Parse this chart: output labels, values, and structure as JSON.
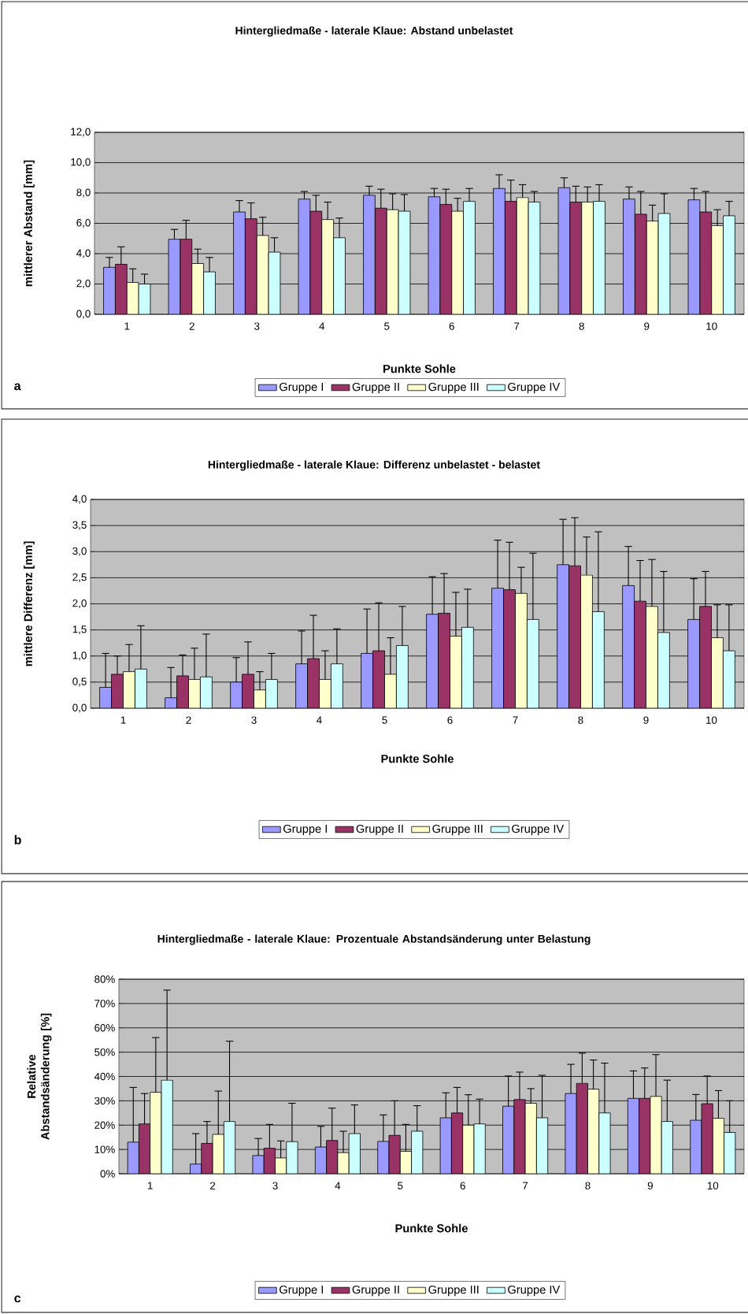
{
  "chart_data": [
    {
      "type": "bar",
      "title": "Hintergliedmaße - laterale Klaue: Abstand unbelastet",
      "xlabel": "Punkte Sohle",
      "ylabel": "mittlerer Abstand [mm]",
      "categories": [
        "1",
        "2",
        "3",
        "4",
        "5",
        "6",
        "7",
        "8",
        "9",
        "10"
      ],
      "series": [
        {
          "name": "Gruppe I",
          "color": "#9999ff",
          "values": [
            3.1,
            4.95,
            6.75,
            7.6,
            7.85,
            7.75,
            8.3,
            8.35,
            7.6,
            7.55
          ],
          "errors": [
            [
              3.1,
              3.75
            ],
            [
              4.95,
              5.6
            ],
            [
              6.75,
              7.5
            ],
            [
              7.6,
              8.1
            ],
            [
              7.85,
              8.45
            ],
            [
              7.75,
              8.3
            ],
            [
              8.3,
              9.2
            ],
            [
              8.35,
              9.0
            ],
            [
              7.6,
              8.4
            ],
            [
              7.55,
              8.3
            ]
          ]
        },
        {
          "name": "Gruppe II",
          "color": "#993366",
          "values": [
            3.3,
            4.95,
            6.3,
            6.8,
            7.0,
            7.25,
            7.45,
            7.4,
            6.6,
            6.75
          ],
          "errors": [
            [
              3.3,
              4.45
            ],
            [
              4.95,
              6.2
            ],
            [
              6.3,
              7.35
            ],
            [
              6.8,
              7.85
            ],
            [
              7.0,
              8.25
            ],
            [
              7.25,
              8.25
            ],
            [
              7.45,
              8.85
            ],
            [
              7.4,
              8.45
            ],
            [
              6.6,
              8.1
            ],
            [
              6.75,
              8.1
            ]
          ]
        },
        {
          "name": "Gruppe III",
          "color": "#ffffcc",
          "values": [
            2.1,
            3.35,
            5.2,
            6.25,
            6.9,
            6.8,
            7.7,
            7.4,
            6.15,
            5.85
          ],
          "errors": [
            [
              2.1,
              3.0
            ],
            [
              3.35,
              4.3
            ],
            [
              5.2,
              6.4
            ],
            [
              6.25,
              7.4
            ],
            [
              6.9,
              7.95
            ],
            [
              6.8,
              7.65
            ],
            [
              7.7,
              8.55
            ],
            [
              7.4,
              8.4
            ],
            [
              6.15,
              7.2
            ],
            [
              5.85,
              6.9
            ]
          ]
        },
        {
          "name": "Gruppe IV",
          "color": "#ccffff",
          "values": [
            2.0,
            2.8,
            4.1,
            5.05,
            6.8,
            7.45,
            7.4,
            7.45,
            6.65,
            6.5
          ],
          "errors": [
            [
              2.0,
              2.65
            ],
            [
              2.8,
              3.75
            ],
            [
              4.1,
              5.05
            ],
            [
              5.05,
              6.35
            ],
            [
              6.8,
              7.9
            ],
            [
              7.45,
              8.3
            ],
            [
              7.4,
              8.1
            ],
            [
              7.45,
              8.55
            ],
            [
              6.65,
              7.95
            ],
            [
              6.5,
              7.45
            ]
          ]
        }
      ],
      "ylim": [
        0,
        12
      ],
      "yticks": [
        {
          "value": 0,
          "label": "0,0"
        },
        {
          "value": 2,
          "label": "2,0"
        },
        {
          "value": 4,
          "label": "4,0"
        },
        {
          "value": 6,
          "label": "6,0"
        },
        {
          "value": 8,
          "label": "8,0"
        },
        {
          "value": 10,
          "label": "10,0"
        },
        {
          "value": 12,
          "label": "12,0"
        }
      ],
      "grid": "y",
      "legend": "bottom",
      "annotations": [
        "a"
      ]
    },
    {
      "type": "bar",
      "title": "Hintergliedmaße - laterale Klaue: Differenz unbelastet - belastet",
      "xlabel": "Punkte Sohle",
      "ylabel": "mittlere Differenz [mm]",
      "categories": [
        "1",
        "2",
        "3",
        "4",
        "5",
        "6",
        "7",
        "8",
        "9",
        "10"
      ],
      "series": [
        {
          "name": "Gruppe I",
          "color": "#9999ff",
          "values": [
            0.4,
            0.2,
            0.5,
            0.85,
            1.05,
            1.8,
            2.3,
            2.75,
            2.35,
            1.7
          ],
          "errors": [
            [
              0.4,
              1.05
            ],
            [
              0.2,
              0.78
            ],
            [
              0.5,
              0.97
            ],
            [
              0.85,
              1.48
            ],
            [
              1.05,
              1.9
            ],
            [
              1.8,
              2.52
            ],
            [
              2.3,
              3.22
            ],
            [
              2.75,
              3.62
            ],
            [
              2.35,
              3.1
            ],
            [
              1.7,
              2.48
            ]
          ]
        },
        {
          "name": "Gruppe II",
          "color": "#993366",
          "values": [
            0.65,
            0.62,
            0.65,
            0.95,
            1.1,
            1.82,
            2.27,
            2.73,
            2.05,
            1.95
          ],
          "errors": [
            [
              0.65,
              1.0
            ],
            [
              0.62,
              1.02
            ],
            [
              0.65,
              1.27
            ],
            [
              0.95,
              1.78
            ],
            [
              1.1,
              2.02
            ],
            [
              1.82,
              2.58
            ],
            [
              2.27,
              3.18
            ],
            [
              2.73,
              3.65
            ],
            [
              2.05,
              2.83
            ],
            [
              1.95,
              2.62
            ]
          ]
        },
        {
          "name": "Gruppe III",
          "color": "#ffffcc",
          "values": [
            0.7,
            0.55,
            0.35,
            0.55,
            0.65,
            1.38,
            2.2,
            2.55,
            1.95,
            1.35
          ],
          "errors": [
            [
              0.7,
              1.22
            ],
            [
              0.55,
              1.15
            ],
            [
              0.35,
              0.7
            ],
            [
              0.55,
              1.1
            ],
            [
              0.65,
              1.35
            ],
            [
              1.38,
              2.22
            ],
            [
              2.2,
              2.7
            ],
            [
              2.55,
              3.28
            ],
            [
              1.95,
              2.85
            ],
            [
              1.35,
              1.98
            ]
          ]
        },
        {
          "name": "Gruppe IV",
          "color": "#ccffff",
          "values": [
            0.75,
            0.6,
            0.55,
            0.85,
            1.2,
            1.55,
            1.7,
            1.85,
            1.45,
            1.1
          ],
          "errors": [
            [
              0.75,
              1.58
            ],
            [
              0.6,
              1.42
            ],
            [
              0.55,
              1.05
            ],
            [
              0.85,
              1.52
            ],
            [
              1.2,
              1.95
            ],
            [
              1.55,
              2.28
            ],
            [
              1.7,
              2.97
            ],
            [
              1.85,
              3.38
            ],
            [
              1.45,
              2.62
            ],
            [
              1.1,
              1.98
            ]
          ]
        }
      ],
      "ylim": [
        0,
        4
      ],
      "yticks": [
        {
          "value": 0,
          "label": "0,0"
        },
        {
          "value": 0.5,
          "label": "0,5"
        },
        {
          "value": 1,
          "label": "1,0"
        },
        {
          "value": 1.5,
          "label": "1,5"
        },
        {
          "value": 2,
          "label": "2,0"
        },
        {
          "value": 2.5,
          "label": "2,5"
        },
        {
          "value": 3,
          "label": "3,0"
        },
        {
          "value": 3.5,
          "label": "3,5"
        },
        {
          "value": 4,
          "label": "4,0"
        }
      ],
      "grid": "y",
      "legend": "bottom",
      "annotations": [
        "b"
      ]
    },
    {
      "type": "bar",
      "title": "Hintergliedmaße - laterale Klaue: Prozentuale Abstandsänderung unter Belastung",
      "xlabel": "Punkte Sohle",
      "ylabel": "Relative Abstandsänderung [%]",
      "categories": [
        "1",
        "2",
        "3",
        "4",
        "5",
        "6",
        "7",
        "8",
        "9",
        "10"
      ],
      "series": [
        {
          "name": "Gruppe I",
          "color": "#9999ff",
          "values": [
            13,
            4,
            7.5,
            11,
            13.3,
            23,
            27.8,
            33,
            31,
            22
          ],
          "errors": [
            [
              13,
              35.5
            ],
            [
              4,
              16.5
            ],
            [
              7.5,
              14.5
            ],
            [
              11,
              19.5
            ],
            [
              13.3,
              24.2
            ],
            [
              23,
              33.3
            ],
            [
              27.8,
              40.2
            ],
            [
              33,
              45
            ],
            [
              31,
              42.3
            ],
            [
              22,
              32.6
            ]
          ]
        },
        {
          "name": "Gruppe II",
          "color": "#993366",
          "values": [
            20.5,
            12.5,
            10.5,
            13.7,
            15.8,
            25,
            30.5,
            37.2,
            31,
            28.8
          ],
          "errors": [
            [
              20.5,
              33
            ],
            [
              12.5,
              21.5
            ],
            [
              10.5,
              20.3
            ],
            [
              13.7,
              27
            ],
            [
              15.8,
              30
            ],
            [
              25,
              35.5
            ],
            [
              30.5,
              41.8
            ],
            [
              37.2,
              49.6
            ],
            [
              31,
              43.5
            ],
            [
              28.8,
              40.2
            ]
          ]
        },
        {
          "name": "Gruppe III",
          "color": "#ffffcc",
          "values": [
            33.5,
            16.2,
            6.5,
            8.7,
            9.2,
            20,
            29,
            34.8,
            31.8,
            22.8
          ],
          "errors": [
            [
              33.5,
              56
            ],
            [
              16.2,
              34
            ],
            [
              6.5,
              13.5
            ],
            [
              8.7,
              17.5
            ],
            [
              9.2,
              20.3
            ],
            [
              20,
              32.5
            ],
            [
              29,
              35
            ],
            [
              34.8,
              46.8
            ],
            [
              31.8,
              49
            ],
            [
              22.8,
              34.2
            ]
          ]
        },
        {
          "name": "Gruppe IV",
          "color": "#ccffff",
          "values": [
            38.5,
            21.5,
            13.2,
            16.5,
            17.5,
            20.5,
            23,
            25,
            21.5,
            17
          ],
          "errors": [
            [
              38.5,
              75.5
            ],
            [
              21.5,
              54.5
            ],
            [
              13.2,
              29
            ],
            [
              16.5,
              28.3
            ],
            [
              17.5,
              28
            ],
            [
              20.5,
              30.7
            ],
            [
              23,
              40.5
            ],
            [
              25,
              45.5
            ],
            [
              21.5,
              38.5
            ],
            [
              17,
              30
            ]
          ]
        }
      ],
      "ylim": [
        0,
        80
      ],
      "yticks": [
        {
          "value": 0,
          "label": "0%"
        },
        {
          "value": 10,
          "label": "10%"
        },
        {
          "value": 20,
          "label": "20%"
        },
        {
          "value": 30,
          "label": "30%"
        },
        {
          "value": 40,
          "label": "40%"
        },
        {
          "value": 50,
          "label": "50%"
        },
        {
          "value": 60,
          "label": "60%"
        },
        {
          "value": 70,
          "label": "70%"
        },
        {
          "value": 80,
          "label": "80%"
        }
      ],
      "grid": "y",
      "legend": "bottom",
      "annotations": [
        "c"
      ]
    }
  ]
}
